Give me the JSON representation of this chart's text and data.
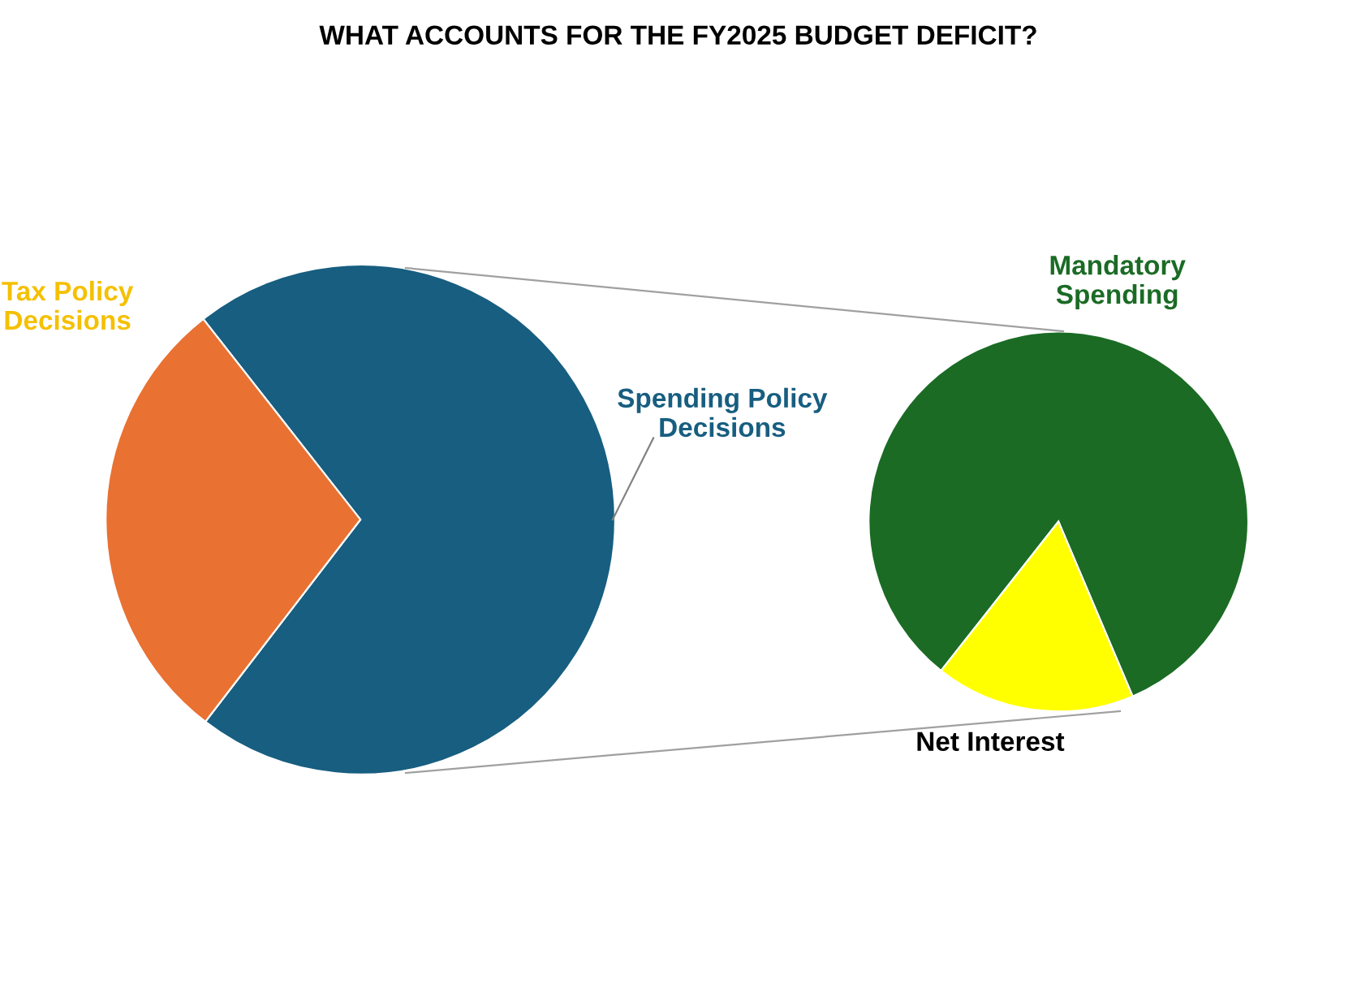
{
  "chart_data": [
    {
      "type": "pie",
      "title": "WHAT ACCOUNTS FOR THE FY2025 BUDGET DEFICIT?",
      "categories": [
        "Spending Policy\nDecisions",
        "Tax Policy\nDecisions"
      ],
      "values": [
        71,
        29
      ],
      "colors": [
        "#175e80",
        "#e97132"
      ]
    },
    {
      "type": "pie",
      "categories": [
        "Mandatory\nSpending",
        "Net Interest"
      ],
      "values": [
        83,
        17
      ],
      "colors": [
        "#1b6b25",
        "#ffff00"
      ]
    }
  ]
}
